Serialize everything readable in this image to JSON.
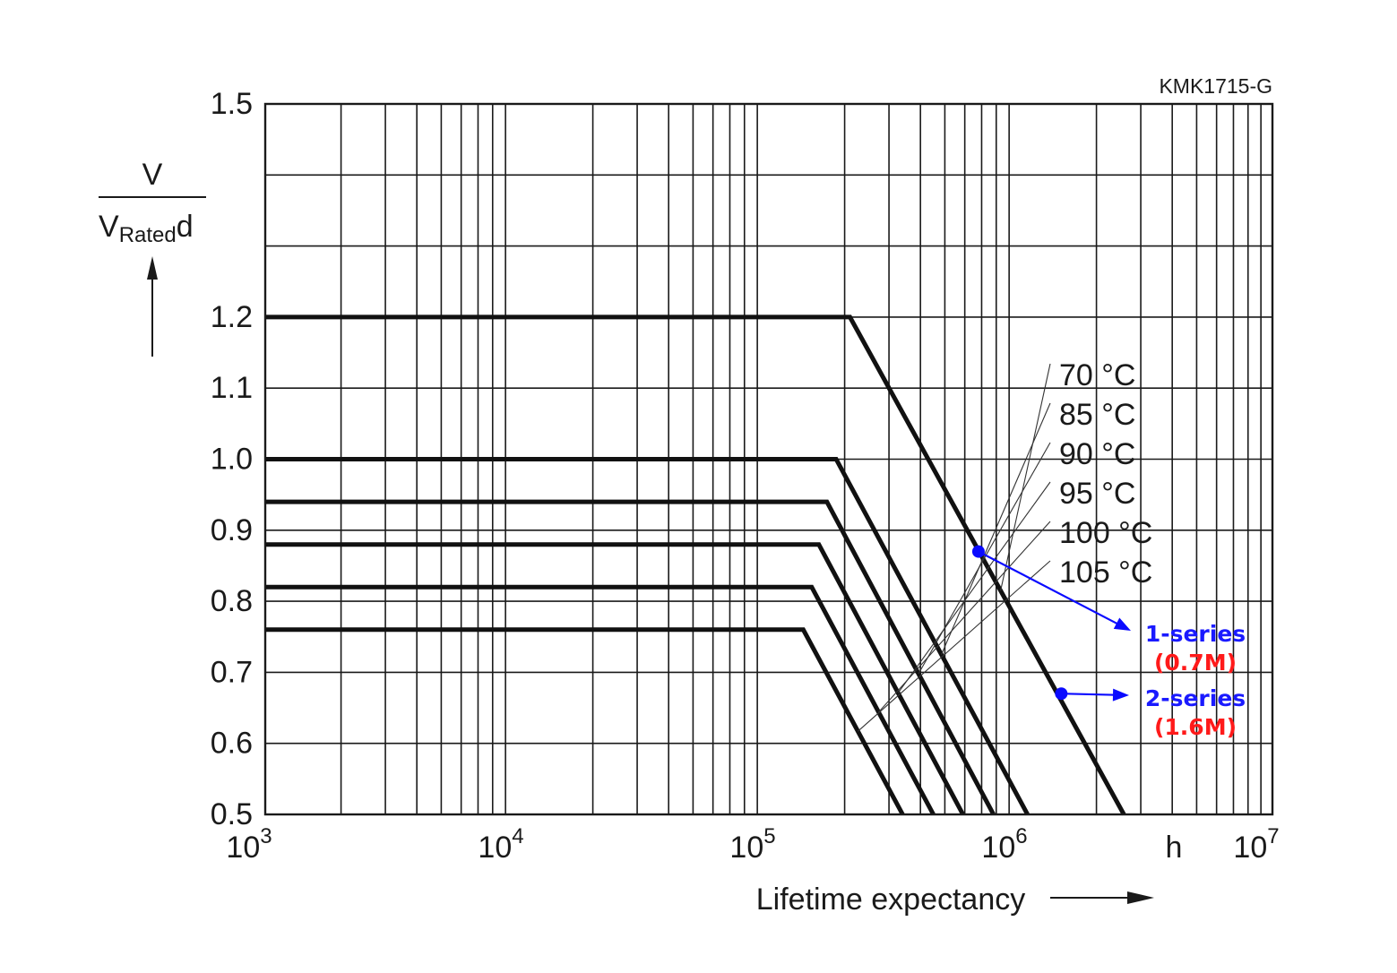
{
  "chart_data": {
    "type": "line",
    "code": "KMK1715-G",
    "ylabel": {
      "numerator": "V",
      "denominator_main": "V",
      "denominator_sub": "Rated",
      "denominator_suffix": "d"
    },
    "xlabel": "Lifetime expectancy",
    "x_unit": "h",
    "x_scale": "log",
    "xlim": [
      1000,
      10000000
    ],
    "ylim": [
      0.5,
      1.5
    ],
    "grid": true,
    "x_ticks": [
      {
        "base": "10",
        "exp": "3"
      },
      {
        "base": "10",
        "exp": "4"
      },
      {
        "base": "10",
        "exp": "5"
      },
      {
        "base": "10",
        "exp": "6"
      },
      {
        "base": "10",
        "exp": "7"
      }
    ],
    "y_ticks": [
      "0.5",
      "0.6",
      "0.7",
      "0.8",
      "0.9",
      "1.0",
      "1.1",
      "1.2",
      "1.5"
    ],
    "y_tick_values": [
      0.5,
      0.6,
      0.7,
      0.8,
      0.9,
      1.0,
      1.1,
      1.2,
      1.5
    ],
    "y_extra_gridlines": [
      1.3,
      1.4
    ],
    "series": [
      {
        "name": "70 °C",
        "points": [
          [
            1000,
            1.2
          ],
          [
            210000,
            1.2
          ],
          [
            2570000,
            0.5
          ]
        ]
      },
      {
        "name": "85 °C",
        "points": [
          [
            1000,
            1.0
          ],
          [
            185000,
            1.0
          ],
          [
            1065000,
            0.5
          ]
        ]
      },
      {
        "name": "90 °C",
        "points": [
          [
            1000,
            0.94
          ],
          [
            170000,
            0.94
          ],
          [
            780000,
            0.5
          ]
        ]
      },
      {
        "name": "95 °C",
        "points": [
          [
            1000,
            0.88
          ],
          [
            158000,
            0.88
          ],
          [
            590000,
            0.5
          ]
        ]
      },
      {
        "name": "100 °C",
        "points": [
          [
            1000,
            0.82
          ],
          [
            148000,
            0.82
          ],
          [
            450000,
            0.5
          ]
        ]
      },
      {
        "name": "105 °C",
        "points": [
          [
            1000,
            0.76
          ],
          [
            137000,
            0.76
          ],
          [
            340000,
            0.5
          ]
        ]
      }
    ],
    "annotations": [
      {
        "label": "1-series",
        "value": "(0.7M)",
        "x": 680000,
        "y": 0.87
      },
      {
        "label": "2-series",
        "value": "(1.6M)",
        "x": 1450000,
        "y": 0.67
      }
    ],
    "colors": {
      "line": "#111111",
      "grid": "#1a1a1a",
      "annotation_label": "#1a1aff",
      "annotation_value": "#ff1a1a",
      "marker": "#0a0aff"
    }
  }
}
